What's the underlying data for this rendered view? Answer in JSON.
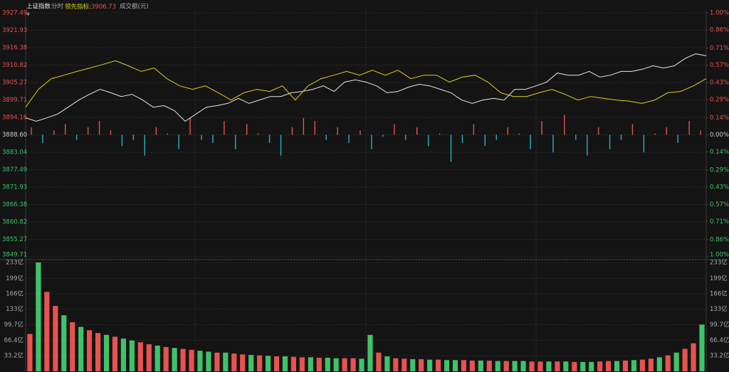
{
  "chart_data": [
    {
      "type": "line",
      "mode_label": "分时",
      "value_separator": ":",
      "series": [
        {
          "name": "上证指数",
          "color": "#e6e6e6",
          "values": [
            3894.0,
            3892.9,
            3894.0,
            3895.2,
            3897.4,
            3899.7,
            3901.5,
            3903.1,
            3902.0,
            3900.8,
            3901.5,
            3899.7,
            3897.4,
            3897.9,
            3896.3,
            3892.9,
            3895.2,
            3897.4,
            3897.9,
            3898.6,
            3900.2,
            3898.6,
            3899.7,
            3900.8,
            3900.8,
            3902.0,
            3902.4,
            3903.1,
            3904.2,
            3902.4,
            3905.4,
            3906.1,
            3905.4,
            3904.2,
            3902.0,
            3902.4,
            3903.8,
            3904.7,
            3904.2,
            3903.1,
            3902.0,
            3899.7,
            3898.6,
            3899.7,
            3900.2,
            3899.7,
            3903.1,
            3903.1,
            3904.2,
            3905.4,
            3908.3,
            3907.6,
            3907.6,
            3908.8,
            3907.0,
            3907.6,
            3908.8,
            3908.8,
            3909.5,
            3910.6,
            3909.9,
            3910.6,
            3912.9,
            3914.4,
            3913.8
          ]
        },
        {
          "name": "领先指标",
          "color": "#d9d21c",
          "last": 3906.73,
          "values": [
            3897.4,
            3903.1,
            3906.5,
            3907.6,
            3908.8,
            3909.9,
            3911.0,
            3912.2,
            3910.6,
            3908.8,
            3909.9,
            3906.5,
            3904.2,
            3903.1,
            3904.2,
            3902.0,
            3899.7,
            3902.0,
            3903.1,
            3902.4,
            3904.2,
            3899.7,
            3904.2,
            3906.5,
            3907.6,
            3908.8,
            3907.6,
            3909.2,
            3907.6,
            3909.2,
            3906.5,
            3907.6,
            3907.6,
            3905.4,
            3907.0,
            3907.6,
            3905.4,
            3902.0,
            3900.8,
            3900.8,
            3902.0,
            3903.1,
            3901.5,
            3899.7,
            3900.8,
            3900.2,
            3899.7,
            3899.3,
            3898.6,
            3899.7,
            3902.0,
            3902.4,
            3904.2,
            3906.5
          ]
        }
      ],
      "bars": {
        "values": [
          3891,
          3886,
          3890,
          3892,
          3887,
          3891,
          3893,
          3890,
          3885,
          3887,
          3882,
          3891,
          3889,
          3884,
          3894,
          3887,
          3886,
          3893,
          3884,
          3892,
          3889,
          3886,
          3882,
          3891,
          3894,
          3893,
          3887,
          3891,
          3886,
          3890,
          3884,
          3888,
          3892,
          3887,
          3891,
          3885,
          3889,
          3880,
          3886,
          3892,
          3885,
          3887,
          3891,
          3889,
          3884,
          3893,
          3883,
          3895,
          3887,
          3882,
          3891,
          3884,
          3887,
          3892,
          3883,
          3889,
          3891,
          3886,
          3893,
          3890
        ]
      },
      "up_color": "#e8524f",
      "down_color": "#3ec36a",
      "bar_down_color": "#26b3c2",
      "ylim": [
        3849.71,
        3927.49
      ],
      "yticks": [
        3849.71,
        3855.27,
        3860.82,
        3866.38,
        3871.93,
        3877.49,
        3883.04,
        {
          "value": 3888.6,
          "label": "3888.60"
        },
        3894.16,
        3899.71,
        3905.27,
        3910.82,
        3916.38,
        3921.93,
        3927.49
      ],
      "y2lim": [
        -1,
        1
      ],
      "y2ticks": [
        {
          "value": -1,
          "label": "1.00%"
        },
        {
          "value": -0.86,
          "label": "0.86%"
        },
        {
          "value": -0.71,
          "label": "0.71%"
        },
        {
          "value": -0.57,
          "label": "0.57%"
        },
        {
          "value": -0.43,
          "label": "0.43%"
        },
        {
          "value": -0.29,
          "label": "0.29%"
        },
        {
          "value": -0.14,
          "label": "0.14%"
        },
        {
          "value": 0,
          "label": "0.00%"
        },
        {
          "value": 0.14,
          "label": "0.14%"
        },
        {
          "value": 0.29,
          "label": "0.29%"
        },
        {
          "value": 0.43,
          "label": "0.43%"
        },
        {
          "value": 0.57,
          "label": "0.57%"
        },
        {
          "value": 0.71,
          "label": "0.71%"
        },
        {
          "value": 0.86,
          "label": "0.86%"
        },
        {
          "value": 1,
          "label": "1.00%"
        }
      ],
      "grid": true
    },
    {
      "type": "bar",
      "title": "成交额(元)",
      "values": [
        80,
        233,
        170,
        140,
        120,
        105,
        95,
        88,
        82,
        78,
        74,
        70,
        66,
        62,
        58,
        55,
        52,
        50,
        48,
        46,
        44,
        42,
        40,
        40,
        38,
        36,
        35,
        34,
        33,
        32,
        32,
        31,
        30,
        30,
        29,
        29,
        28,
        28,
        28,
        27,
        78,
        40,
        32,
        28,
        27,
        26,
        26,
        25,
        25,
        24,
        24,
        24,
        23,
        23,
        23,
        22,
        22,
        22,
        22,
        21,
        21,
        21,
        21,
        21,
        20,
        20,
        20,
        21,
        22,
        22,
        23,
        24,
        25,
        27,
        30,
        34,
        40,
        48,
        60,
        100
      ],
      "colors": [
        "#e8524f",
        "#3ec36a",
        "#e8524f",
        "#e8524f",
        "#3ec36a",
        "#e8524f",
        "#3ec36a",
        "#e8524f",
        "#e8524f",
        "#3ec36a",
        "#e8524f",
        "#3ec36a",
        "#3ec36a",
        "#e8524f",
        "#e8524f",
        "#3ec36a",
        "#e8524f",
        "#3ec36a",
        "#e8524f",
        "#e8524f",
        "#3ec36a",
        "#3ec36a",
        "#e8524f",
        "#3ec36a",
        "#e8524f",
        "#e8524f",
        "#3ec36a",
        "#e8524f",
        "#3ec36a",
        "#e8524f",
        "#3ec36a",
        "#e8524f",
        "#e8524f",
        "#3ec36a",
        "#e8524f",
        "#3ec36a",
        "#3ec36a",
        "#e8524f",
        "#e8524f",
        "#3ec36a",
        "#3ec36a",
        "#e8524f",
        "#3ec36a",
        "#e8524f",
        "#e8524f",
        "#3ec36a",
        "#e8524f",
        "#3ec36a",
        "#e8524f",
        "#3ec36a",
        "#3ec36a",
        "#e8524f",
        "#e8524f",
        "#3ec36a",
        "#e8524f",
        "#3ec36a",
        "#e8524f",
        "#3ec36a",
        "#3ec36a",
        "#e8524f",
        "#e8524f",
        "#3ec36a",
        "#e8524f",
        "#3ec36a",
        "#e8524f",
        "#3ec36a",
        "#3ec36a",
        "#e8524f",
        "#e8524f",
        "#3ec36a",
        "#e8524f",
        "#3ec36a",
        "#e8524f",
        "#e8524f",
        "#3ec36a",
        "#e8524f",
        "#3ec36a",
        "#e8524f",
        "#e8524f",
        "#3ec36a"
      ],
      "ylim": [
        0,
        233
      ],
      "yticks": [
        {
          "value": 33.2,
          "label": "33.2亿"
        },
        {
          "value": 66.4,
          "label": "66.4亿"
        },
        {
          "value": 99.7,
          "label": "99.7亿"
        },
        {
          "value": 133,
          "label": "133亿"
        },
        {
          "value": 166,
          "label": "166亿"
        },
        {
          "value": 199,
          "label": "199亿"
        },
        {
          "value": 233,
          "label": "233亿"
        }
      ],
      "grid": true
    }
  ]
}
